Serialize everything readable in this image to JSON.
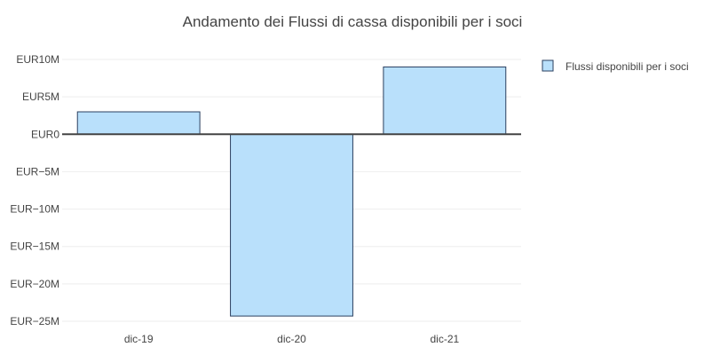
{
  "chart_data": {
    "type": "bar",
    "title": "Andamento dei Flussi di cassa disponibili per i soci",
    "categories": [
      "dic-19",
      "dic-20",
      "dic-21"
    ],
    "series": [
      {
        "name": "Flussi disponibili per i soci",
        "values": [
          3000000,
          -24300000,
          9000000
        ]
      }
    ],
    "y_ticks": [
      10000000,
      5000000,
      0,
      -5000000,
      -10000000,
      -15000000,
      -20000000,
      -25000000
    ],
    "y_tick_labels": [
      "EUR10M",
      "EUR5M",
      "EUR0",
      "EUR−5M",
      "EUR−10M",
      "EUR−15M",
      "EUR−20M",
      "EUR−25M"
    ],
    "ylim": [
      -25000000,
      10000000
    ],
    "grid": true,
    "legend_position": "top-right",
    "colors": {
      "bar_fill": "#b9e0fb",
      "bar_stroke": "#2a3f5f",
      "grid": "#eeeeee",
      "zero_line": "#444444",
      "text": "#444444"
    }
  }
}
